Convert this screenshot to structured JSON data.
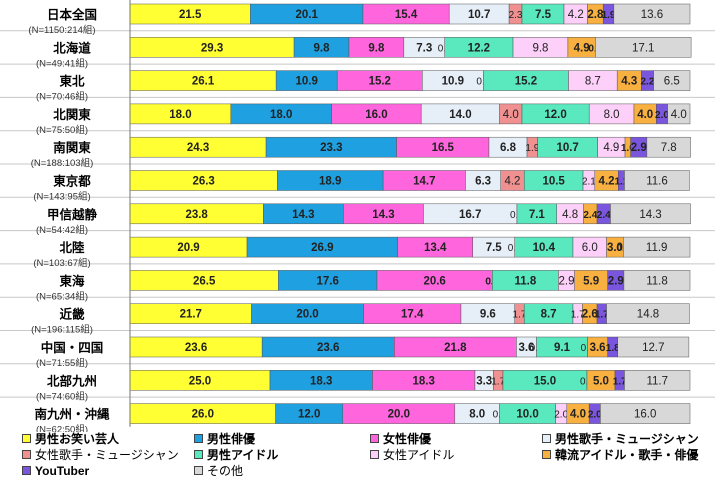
{
  "chart_data": {
    "type": "bar",
    "orientation": "horizontal",
    "stacked": true,
    "percent": true,
    "categories": [
      {
        "name": "日本全国",
        "n": "(N=1150:214組)"
      },
      {
        "name": "北海道",
        "n": "(N=49:41組)"
      },
      {
        "name": "東北",
        "n": "(N=70:46組)"
      },
      {
        "name": "北関東",
        "n": "(N=75:50組)"
      },
      {
        "name": "南関東",
        "n": "(N=188:103組)"
      },
      {
        "name": "東京都",
        "n": "(N=143:95組)"
      },
      {
        "name": "甲信越静",
        "n": "(N=54:42組)"
      },
      {
        "name": "北陸",
        "n": "(N=103:67組)"
      },
      {
        "name": "東海",
        "n": "(N=65:34組)"
      },
      {
        "name": "近畿",
        "n": "(N=196:115組)"
      },
      {
        "name": "中国・四国",
        "n": "(N=71:55組)"
      },
      {
        "name": "北部九州",
        "n": "(N=74:60組)"
      },
      {
        "name": "南九州・沖縄",
        "n": "(N=62:50組)"
      }
    ],
    "series": [
      {
        "name": "男性お笑い芸人",
        "color": "#ffff33",
        "bold": true,
        "values": [
          21.5,
          29.3,
          26.1,
          18.0,
          24.3,
          26.3,
          23.8,
          20.9,
          26.5,
          21.7,
          23.6,
          25.0,
          26.0
        ]
      },
      {
        "name": "男性俳優",
        "color": "#1fa0e0",
        "bold": true,
        "values": [
          20.1,
          9.8,
          10.9,
          18.0,
          23.3,
          18.9,
          14.3,
          26.9,
          17.6,
          20.0,
          23.6,
          18.3,
          12.0
        ]
      },
      {
        "name": "女性俳優",
        "color": "#ff66dd",
        "bold": true,
        "values": [
          15.4,
          9.8,
          15.2,
          16.0,
          16.5,
          14.7,
          14.3,
          13.4,
          20.6,
          17.4,
          21.8,
          18.3,
          20.0
        ]
      },
      {
        "name": "男性歌手・ミュージシャン",
        "color": "#e6eef8",
        "bold": true,
        "values": [
          10.7,
          7.3,
          10.9,
          14.0,
          6.8,
          6.3,
          16.7,
          7.5,
          0.0,
          9.6,
          3.6,
          3.3,
          8.0
        ]
      },
      {
        "name": "女性歌手・ミュージシャン",
        "color": "#f09090",
        "bold": false,
        "values": [
          2.3,
          0.0,
          0.0,
          4.0,
          1.9,
          4.2,
          0.0,
          0.0,
          0.0,
          1.7,
          0.0,
          1.7,
          0.0
        ]
      },
      {
        "name": "男性アイドル",
        "color": "#5ae8be",
        "bold": true,
        "values": [
          7.5,
          12.2,
          15.2,
          12.0,
          10.7,
          10.5,
          7.1,
          10.4,
          11.8,
          8.7,
          9.1,
          15.0,
          10.0
        ]
      },
      {
        "name": "女性アイドル",
        "color": "#fcd0f8",
        "bold": false,
        "values": [
          4.2,
          9.8,
          8.7,
          8.0,
          4.9,
          2.1,
          4.8,
          6.0,
          2.9,
          1.7,
          0.0,
          0.0,
          2.0
        ]
      },
      {
        "name": "韓流アイドル・歌手・俳優",
        "color": "#f8b040",
        "bold": true,
        "values": [
          2.8,
          4.9,
          4.3,
          4.0,
          1.0,
          4.2,
          2.4,
          3.0,
          5.9,
          2.6,
          3.6,
          5.0,
          4.0
        ]
      },
      {
        "name": "YouTuber",
        "color": "#7a55dd",
        "bold": true,
        "values": [
          1.9,
          0.0,
          2.2,
          2.0,
          2.9,
          1.1,
          2.4,
          0.0,
          2.9,
          1.7,
          1.8,
          1.7,
          2.0
        ]
      },
      {
        "name": "その他",
        "color": "#d8d8d8",
        "bold": false,
        "values": [
          13.6,
          17.1,
          6.5,
          4.0,
          7.8,
          11.6,
          14.3,
          11.9,
          11.8,
          14.8,
          12.7,
          11.7,
          16.0
        ]
      }
    ],
    "xlim": [
      0,
      100
    ],
    "grid": false,
    "legend": "bottom"
  }
}
